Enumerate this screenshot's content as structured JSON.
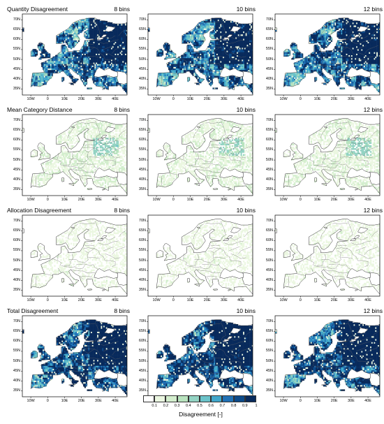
{
  "rows": [
    {
      "title": "Quantity Disagreement",
      "level": 0.85
    },
    {
      "title": "Mean Category Distance",
      "level": 0.18
    },
    {
      "title": "Allocation Disagreement",
      "level": 0.1
    },
    {
      "title": "Total Disagreement",
      "level": 0.9
    }
  ],
  "columns": [
    "8 bins",
    "10 bins",
    "12 bins"
  ],
  "lat_labels": [
    "70N",
    "65N",
    "60N",
    "55N",
    "50N",
    "45N",
    "40N",
    "35N"
  ],
  "lon_labels": [
    "10W",
    "0",
    "10E",
    "20E",
    "30E",
    "40E"
  ],
  "legend": {
    "title": "Disagreement [-]",
    "ticks": [
      "0.1",
      "0.2",
      "0.3",
      "0.4",
      "0.5",
      "0.6",
      "0.7",
      "0.8",
      "0.9",
      "1"
    ],
    "colors": [
      "#ffffff",
      "#ebf7e1",
      "#d3eecd",
      "#b8e3be",
      "#93d3c3",
      "#6bc3c9",
      "#41a7cb",
      "#2171b5",
      "#0c4a89",
      "#082a5c"
    ]
  }
}
